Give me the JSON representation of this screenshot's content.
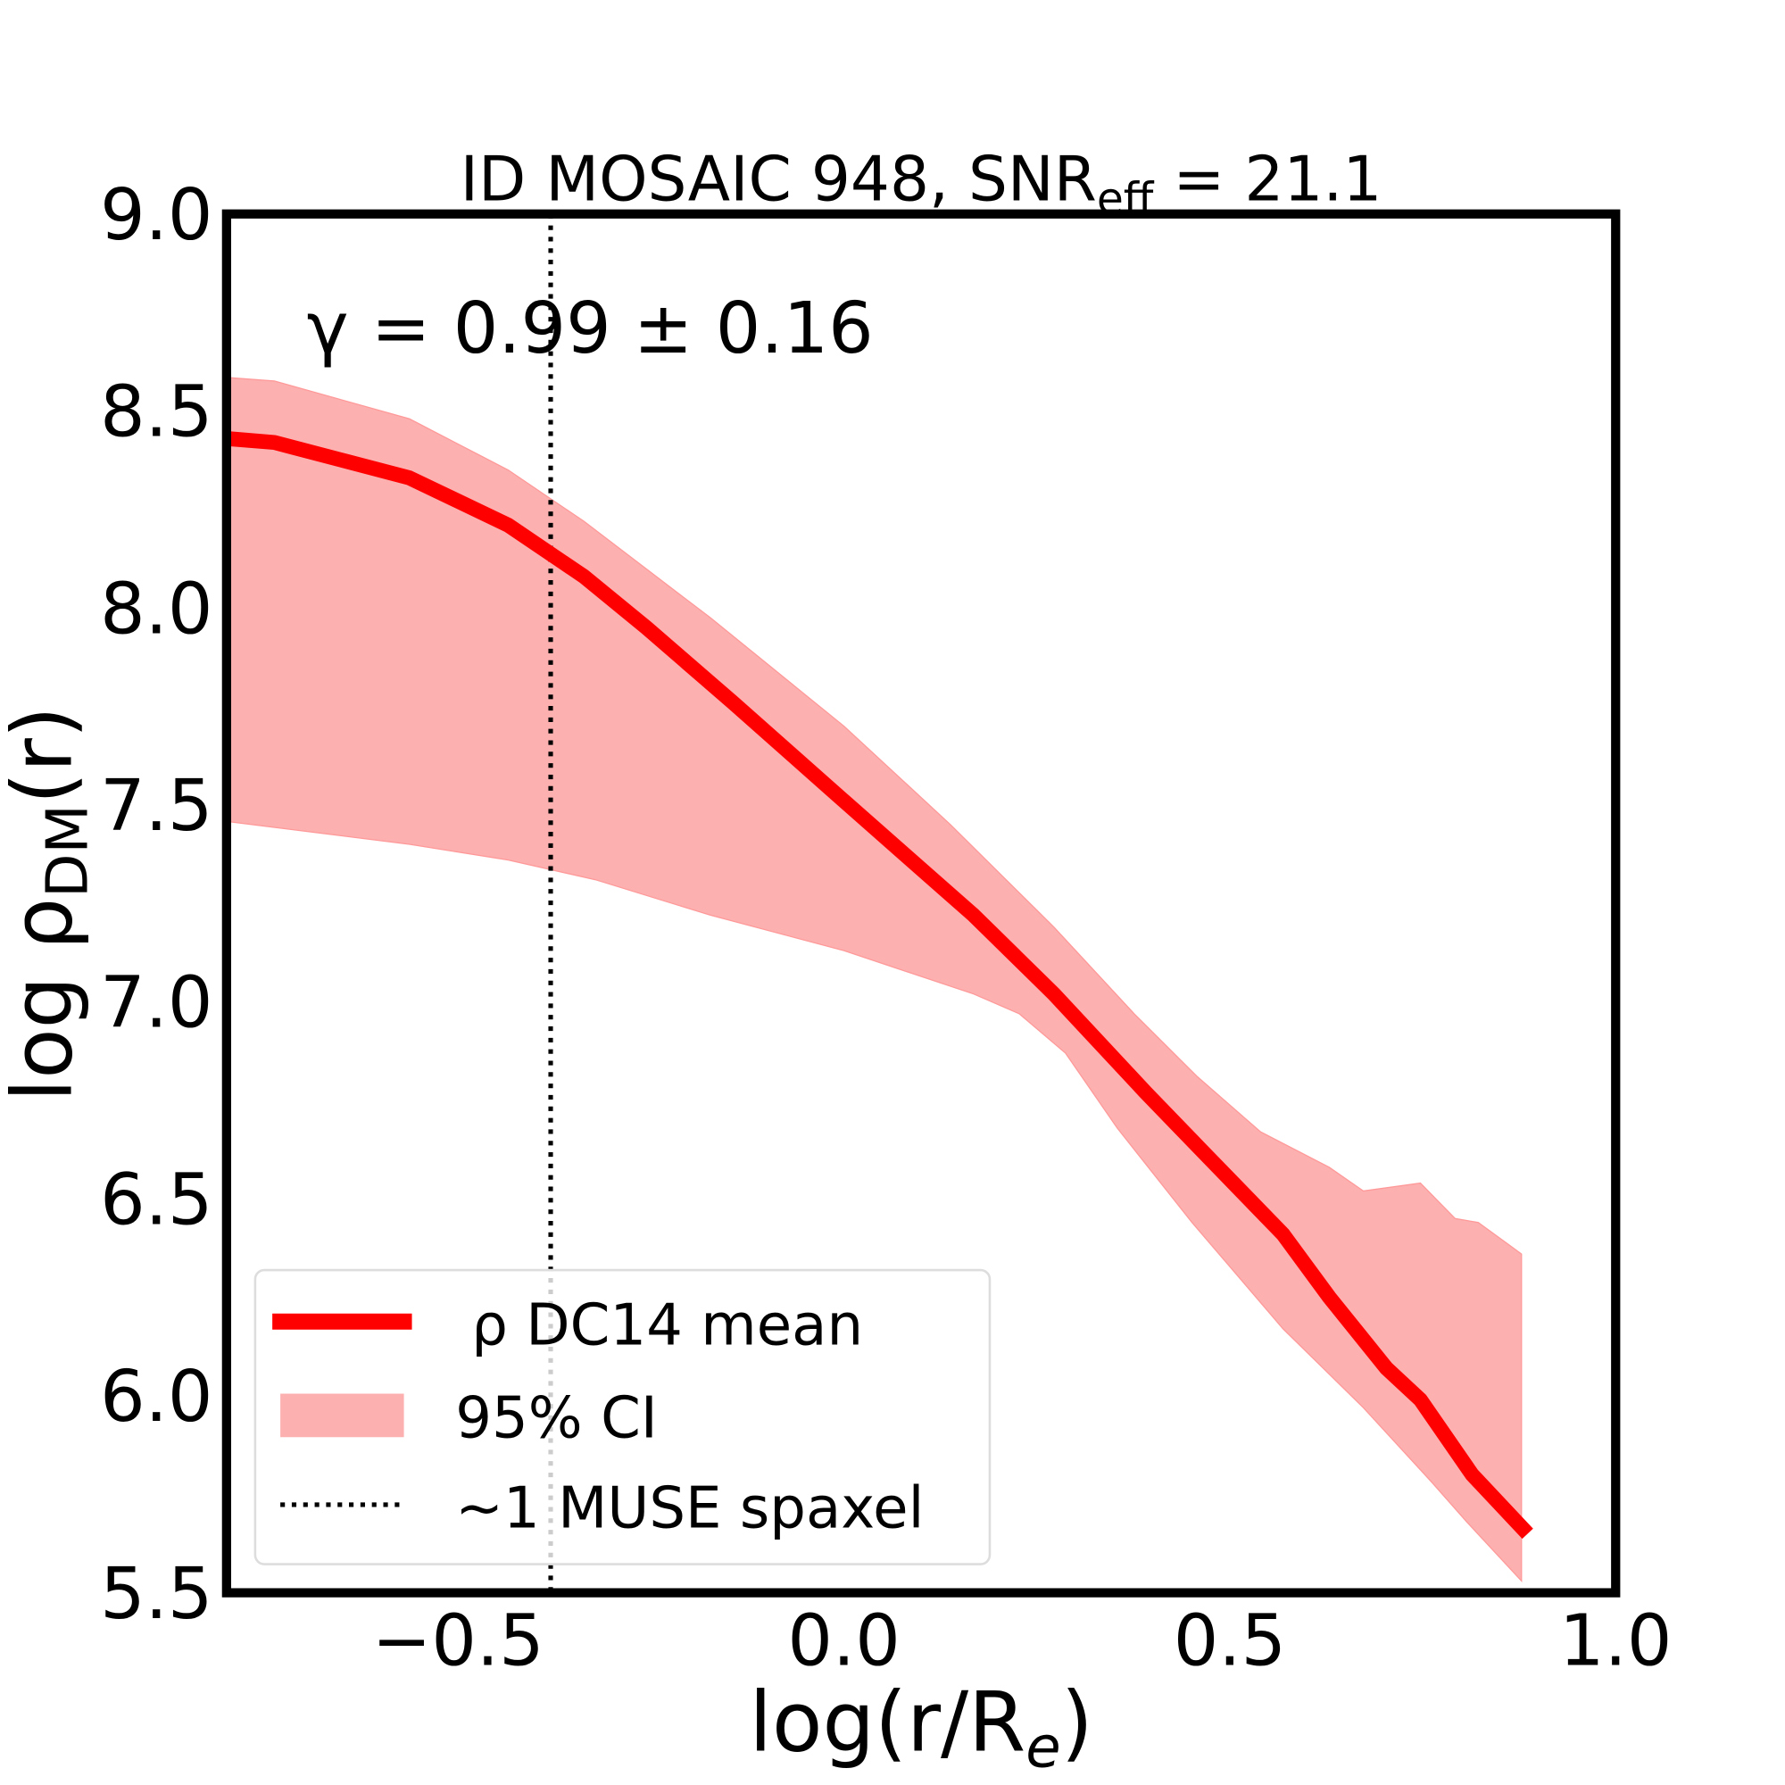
{
  "chart_data": {
    "type": "line",
    "title": "ID MOSAIC 948, SNR",
    "title_sub": "eff",
    "title_suffix": " = 21.1",
    "annotation": "γ = 0.99 ± 0.16",
    "xlabel": "log(r/R",
    "xlabel_sub": "e",
    "xlabel_suffix": ")",
    "ylabel": "log ρ",
    "ylabel_sub": "DM",
    "ylabel_suffix": "(r)",
    "xlim": [
      -0.8,
      1.0
    ],
    "ylim": [
      5.5,
      9.0
    ],
    "xticks": [
      "−0.5",
      "0.0",
      "0.5",
      "1.0"
    ],
    "xtick_values": [
      -0.5,
      0.0,
      0.5,
      1.0
    ],
    "yticks": [
      "5.5",
      "6.0",
      "6.5",
      "7.0",
      "7.5",
      "8.0",
      "8.5",
      "9.0"
    ],
    "ytick_values": [
      5.5,
      6.0,
      6.5,
      7.0,
      7.5,
      8.0,
      8.5,
      9.0
    ],
    "grid": false,
    "legend_placement": "lower-left",
    "series": [
      {
        "name": "ρ DC14 mean",
        "color": "#ff0000",
        "x": [
          -0.8,
          -0.738,
          -0.563,
          -0.435,
          -0.337,
          -0.256,
          -0.144,
          0.0,
          0.168,
          0.272,
          0.391,
          0.465,
          0.569,
          0.629,
          0.703,
          0.747,
          0.814,
          0.886
        ],
        "y": [
          8.43,
          8.42,
          8.33,
          8.21,
          8.08,
          7.95,
          7.76,
          7.51,
          7.22,
          7.02,
          6.77,
          6.62,
          6.41,
          6.25,
          6.07,
          5.99,
          5.8,
          5.65
        ]
      }
    ],
    "band": {
      "name": "95% CI",
      "color": "#fcb0b0",
      "upper_x": [
        -0.8,
        -0.738,
        -0.563,
        -0.435,
        -0.337,
        -0.173,
        0.0,
        0.138,
        0.272,
        0.376,
        0.458,
        0.54,
        0.629,
        0.673,
        0.747,
        0.792,
        0.822,
        0.878
      ],
      "upper_y": [
        8.585,
        8.576,
        8.48,
        8.35,
        8.22,
        7.975,
        7.7,
        7.45,
        7.19,
        6.97,
        6.81,
        6.67,
        6.58,
        6.52,
        6.54,
        6.45,
        6.44,
        6.36
      ],
      "lower_x": [
        -0.8,
        -0.563,
        -0.435,
        -0.322,
        -0.173,
        0.0,
        0.168,
        0.227,
        0.287,
        0.354,
        0.451,
        0.569,
        0.673,
        0.762,
        0.807,
        0.878
      ],
      "lower_y": [
        7.458,
        7.4,
        7.36,
        7.31,
        7.22,
        7.13,
        7.02,
        6.97,
        6.87,
        6.68,
        6.44,
        6.17,
        5.97,
        5.78,
        5.68,
        5.53
      ]
    },
    "vline": {
      "name": "~1 MUSE spaxel",
      "x": -0.38
    }
  }
}
